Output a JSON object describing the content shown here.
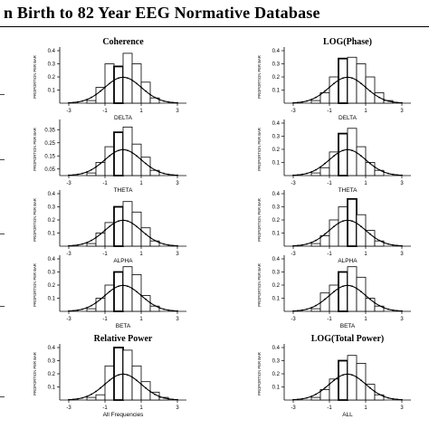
{
  "page": {
    "title": "n Birth to 82 Year EEG Normative Database"
  },
  "common": {
    "ylabel": "PROPORTION PER BAR",
    "x_ticks": [
      -3,
      -1,
      1,
      3
    ],
    "xlim": [
      -3.5,
      3.5
    ],
    "bar_width": 0.5
  },
  "chart_data": [
    {
      "type": "bar",
      "group_title": "Coherence",
      "xlabel": "DELTA",
      "ylim": [
        0,
        0.4
      ],
      "y_ticks": [
        0.1,
        0.2,
        0.3,
        0.4
      ],
      "bins": [
        -2.75,
        -2.25,
        -1.75,
        -1.25,
        -0.75,
        -0.25,
        0.25,
        0.75,
        1.25,
        1.75,
        2.25,
        2.75
      ],
      "values": [
        0,
        0,
        0.02,
        0.12,
        0.3,
        0.28,
        0.38,
        0.3,
        0.16,
        0.04,
        0,
        0
      ],
      "highlight_index": 5
    },
    {
      "type": "bar",
      "group_title": "LOG(Phase)",
      "xlabel": "DELTA",
      "ylim": [
        0,
        0.4
      ],
      "y_ticks": [
        0.1,
        0.2,
        0.3,
        0.4
      ],
      "bins": [
        -2.75,
        -2.25,
        -1.75,
        -1.25,
        -0.75,
        -0.25,
        0.25,
        0.75,
        1.25,
        1.75,
        2.25,
        2.75
      ],
      "values": [
        0,
        0,
        0.02,
        0.08,
        0.2,
        0.34,
        0.35,
        0.3,
        0.2,
        0.08,
        0.02,
        0
      ],
      "highlight_index": 5
    },
    {
      "type": "bar",
      "group_title": "",
      "xlabel": "THETA",
      "ylim": [
        0,
        0.4
      ],
      "y_ticks": [
        0.05,
        0.15,
        0.25,
        0.35
      ],
      "bins": [
        -2.75,
        -2.25,
        -1.75,
        -1.25,
        -0.75,
        -0.25,
        0.25,
        0.75,
        1.25,
        1.75,
        2.25,
        2.75
      ],
      "values": [
        0,
        0,
        0.02,
        0.1,
        0.22,
        0.33,
        0.37,
        0.24,
        0.14,
        0.04,
        0,
        0
      ],
      "highlight_index": 5
    },
    {
      "type": "bar",
      "group_title": "",
      "xlabel": "THETA",
      "ylim": [
        0,
        0.4
      ],
      "y_ticks": [
        0.1,
        0.2,
        0.3,
        0.4
      ],
      "bins": [
        -2.75,
        -2.25,
        -1.75,
        -1.25,
        -0.75,
        -0.25,
        0.25,
        0.75,
        1.25,
        1.75,
        2.25,
        2.75
      ],
      "values": [
        0,
        0,
        0.02,
        0.06,
        0.18,
        0.32,
        0.36,
        0.22,
        0.1,
        0.04,
        0,
        0
      ],
      "highlight_index": 5
    },
    {
      "type": "bar",
      "group_title": "",
      "xlabel": "ALPHA",
      "ylim": [
        0,
        0.4
      ],
      "y_ticks": [
        0.1,
        0.2,
        0.3,
        0.4
      ],
      "bins": [
        -2.75,
        -2.25,
        -1.75,
        -1.25,
        -0.75,
        -0.25,
        0.25,
        0.75,
        1.25,
        1.75,
        2.25,
        2.75
      ],
      "values": [
        0,
        0,
        0.02,
        0.1,
        0.18,
        0.3,
        0.34,
        0.26,
        0.14,
        0.04,
        0,
        0
      ],
      "highlight_index": 5
    },
    {
      "type": "bar",
      "group_title": "",
      "xlabel": "ALPHA",
      "ylim": [
        0,
        0.4
      ],
      "y_ticks": [
        0.1,
        0.2,
        0.3,
        0.4
      ],
      "bins": [
        -2.75,
        -2.25,
        -1.75,
        -1.25,
        -0.75,
        -0.25,
        0.25,
        0.75,
        1.25,
        1.75,
        2.25,
        2.75
      ],
      "values": [
        0,
        0,
        0.02,
        0.08,
        0.2,
        0.3,
        0.36,
        0.24,
        0.12,
        0.04,
        0,
        0
      ],
      "highlight_index": 6
    },
    {
      "type": "bar",
      "group_title": "",
      "xlabel": "BETA",
      "ylim": [
        0,
        0.4
      ],
      "y_ticks": [
        0.1,
        0.2,
        0.3,
        0.4
      ],
      "bins": [
        -2.75,
        -2.25,
        -1.75,
        -1.25,
        -0.75,
        -0.25,
        0.25,
        0.75,
        1.25,
        1.75,
        2.25,
        2.75
      ],
      "values": [
        0,
        0,
        0.02,
        0.1,
        0.2,
        0.3,
        0.34,
        0.28,
        0.12,
        0.04,
        0,
        0
      ],
      "highlight_index": 5
    },
    {
      "type": "bar",
      "group_title": "",
      "xlabel": "BETA",
      "ylim": [
        0,
        0.4
      ],
      "y_ticks": [
        0.1,
        0.2,
        0.3,
        0.4
      ],
      "bins": [
        -2.75,
        -2.25,
        -1.75,
        -1.25,
        -0.75,
        -0.25,
        0.25,
        0.75,
        1.25,
        1.75,
        2.25,
        2.75
      ],
      "values": [
        0,
        0,
        0.02,
        0.14,
        0.2,
        0.3,
        0.34,
        0.26,
        0.1,
        0.04,
        0,
        0
      ],
      "highlight_index": 5
    },
    {
      "type": "bar",
      "group_title": "Relative Power",
      "xlabel": "All Frequencies",
      "ylim": [
        0,
        0.4
      ],
      "y_ticks": [
        0.1,
        0.2,
        0.3,
        0.4
      ],
      "bins": [
        -2.75,
        -2.25,
        -1.75,
        -1.25,
        -0.75,
        -0.25,
        0.25,
        0.75,
        1.25,
        1.75,
        2.25,
        2.75
      ],
      "values": [
        0,
        0,
        0.02,
        0.04,
        0.26,
        0.4,
        0.38,
        0.26,
        0.14,
        0.06,
        0.02,
        0
      ],
      "highlight_index": 5
    },
    {
      "type": "bar",
      "group_title": "LOG(Total Power)",
      "xlabel": "ALL",
      "ylim": [
        0,
        0.4
      ],
      "y_ticks": [
        0.1,
        0.2,
        0.3,
        0.4
      ],
      "bins": [
        -2.75,
        -2.25,
        -1.75,
        -1.25,
        -0.75,
        -0.25,
        0.25,
        0.75,
        1.25,
        1.75,
        2.25,
        2.75
      ],
      "values": [
        0,
        0,
        0.02,
        0.08,
        0.16,
        0.3,
        0.34,
        0.28,
        0.12,
        0.04,
        0,
        0
      ],
      "highlight_index": 5
    }
  ]
}
